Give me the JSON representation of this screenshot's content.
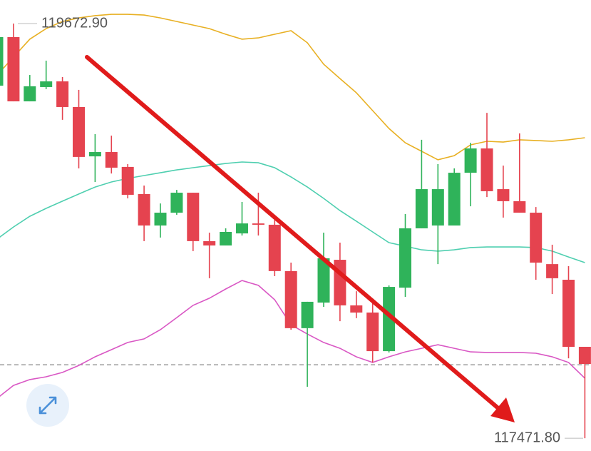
{
  "chart_data": {
    "type": "candlestick",
    "ylim": [
      117404,
      119798
    ],
    "up_color": "#2fb35a",
    "down_color": "#e5434f",
    "last_price_line": 117862,
    "annotations": [
      {
        "value": 119672.9,
        "label": "119672.90"
      },
      {
        "value": 117471.8,
        "label": "117471.80"
      }
    ],
    "open": [
      119343,
      119601,
      119260,
      119336,
      119366,
      119230,
      118968,
      118991,
      118912,
      118768,
      118601,
      118669,
      118775,
      118518,
      118495,
      118559,
      118612,
      118605,
      118359,
      118056,
      118192,
      118419,
      118177,
      118139,
      117934,
      118271,
      118586,
      118601,
      118601,
      118881,
      119010,
      118794,
      118730,
      118669,
      118396,
      118313,
      117957
    ],
    "high": [
      119601,
      119672.9,
      119400,
      119476,
      119389,
      119321,
      119086,
      119078,
      118927,
      118813,
      118718,
      118790,
      118775,
      118563,
      118586,
      118726,
      118775,
      118639,
      118404,
      118196,
      118563,
      118510,
      118252,
      118199,
      118283,
      118662,
      119056,
      118927,
      118904,
      119040,
      119199,
      118919,
      119090,
      118699,
      118499,
      118385,
      117957
    ],
    "low": [
      119343,
      119260,
      119260,
      119325,
      119162,
      118904,
      118832,
      118877,
      118745,
      118518,
      118537,
      118658,
      118465,
      118321,
      118495,
      118548,
      118548,
      118332,
      118048,
      117745,
      118169,
      118093,
      118109,
      117874,
      117927,
      118222,
      118586,
      118396,
      118601,
      118703,
      118752,
      118643,
      118669,
      118313,
      118237,
      117896,
      117471.8
    ],
    "close": [
      119601,
      119260,
      119340,
      119366,
      119230,
      118965,
      118991,
      118908,
      118764,
      118601,
      118669,
      118775,
      118518,
      118495,
      118567,
      118612,
      118605,
      118359,
      118056,
      118196,
      118427,
      118177,
      118139,
      117934,
      118275,
      118586,
      118794,
      118794,
      118881,
      119010,
      118783,
      118730,
      118669,
      118404,
      118321,
      117957,
      117866
    ],
    "series": [
      {
        "color": "#e8b023",
        "values": [
          119400,
          119495,
          119590,
          119646,
          119684,
          119703,
          119715,
          119722,
          119722,
          119718,
          119703,
          119684,
          119665,
          119646,
          119616,
          119590,
          119597,
          119616,
          119635,
          119571,
          119457,
          119381,
          119306,
          119211,
          119116,
          119040,
          118995,
          118950,
          118972,
          119029,
          119048,
          119044,
          119056,
          119052,
          119048,
          119056,
          119067
        ]
      },
      {
        "color": "#4fcfb0",
        "values": [
          118529,
          118593,
          118650,
          118692,
          118730,
          118768,
          118805,
          118832,
          118851,
          118866,
          118881,
          118896,
          118908,
          118919,
          118930,
          118938,
          118934,
          118908,
          118859,
          118805,
          118745,
          118680,
          118624,
          118567,
          118510,
          118491,
          118472,
          118465,
          118472,
          118484,
          118487,
          118487,
          118487,
          118484,
          118465,
          118434,
          118404
        ]
      },
      {
        "color": "#d957c4",
        "values": [
          117684,
          117752,
          117783,
          117798,
          117821,
          117858,
          117904,
          117942,
          117980,
          117999,
          118048,
          118112,
          118177,
          118215,
          118264,
          118309,
          118283,
          118207,
          118074,
          118025,
          117980,
          117949,
          117904,
          117874,
          117904,
          117930,
          117949,
          117968,
          117949,
          117930,
          117927,
          117927,
          117927,
          117923,
          117904,
          117874,
          117790
        ]
      }
    ]
  }
}
